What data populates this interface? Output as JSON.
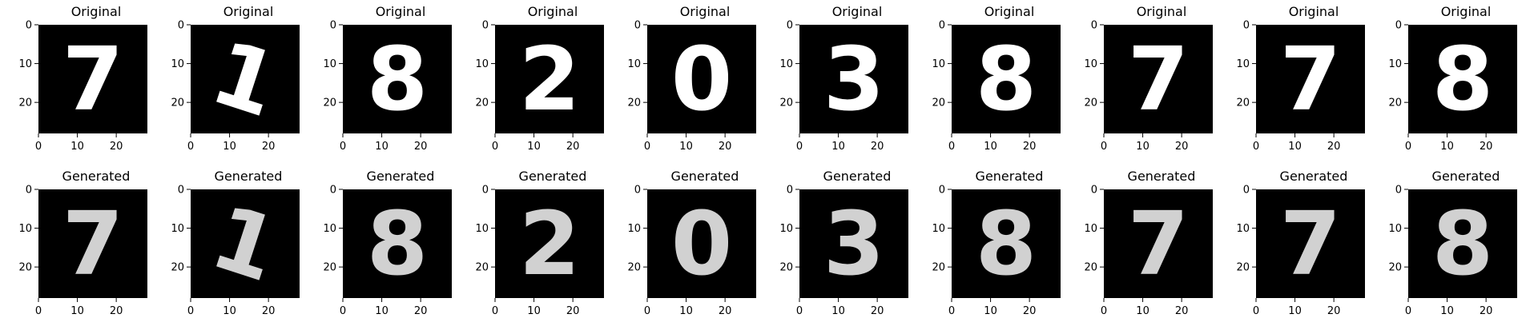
{
  "figure": {
    "rows": [
      {
        "title": "Original",
        "digits": [
          {
            "char": "7"
          },
          {
            "char": "1"
          },
          {
            "char": "8"
          },
          {
            "char": "2"
          },
          {
            "char": "0"
          },
          {
            "char": "3"
          },
          {
            "char": "8"
          },
          {
            "char": "7"
          },
          {
            "char": "7"
          },
          {
            "char": "8"
          }
        ]
      },
      {
        "title": "Generated",
        "digits": [
          {
            "char": "7"
          },
          {
            "char": "1"
          },
          {
            "char": "8"
          },
          {
            "char": "2"
          },
          {
            "char": "0"
          },
          {
            "char": "3"
          },
          {
            "char": "8"
          },
          {
            "char": "7"
          },
          {
            "char": "7"
          },
          {
            "char": "8"
          }
        ]
      }
    ],
    "xticks": [
      "0",
      "10",
      "20"
    ],
    "yticks": [
      "0",
      "10",
      "20"
    ],
    "image_range": [
      0,
      28
    ],
    "background": "#000000",
    "digit_color": "#ffffff"
  }
}
